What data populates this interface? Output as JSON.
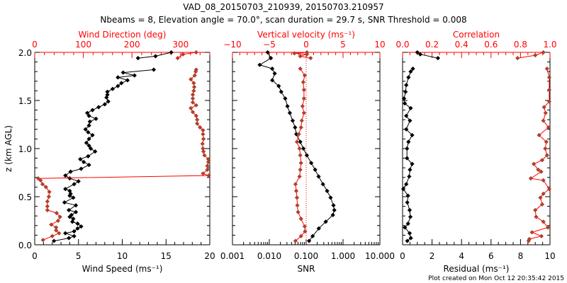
{
  "title": "VAD_08_20150703_210939, 20150703.210957",
  "subtitle": "Nbeams = 8, Elevation angle = 70.0°, scan duration = 29.7 s, SNR Threshold = 0.008",
  "footer": "Plot created on Mon Oct 12 20:35:42 2015",
  "colors": {
    "primary": "#000000",
    "secondary_marker": "#b0402c",
    "secondary_line": "#ff0000",
    "axis_top": "#ff0000"
  },
  "chart_data": [
    {
      "type": "line",
      "ylabel": "z (km AGL)",
      "ylim": [
        0,
        2
      ],
      "yticks": [
        "0.0",
        "0.5",
        "1.0",
        "1.5",
        "2.0"
      ],
      "xlabel": "Wind Speed (ms⁻¹)",
      "xlim": [
        0,
        20
      ],
      "xticks": [
        "0",
        "5",
        "10",
        "15",
        "20"
      ],
      "top_xlabel": "Wind Direction (deg)",
      "top_xlim": [
        0,
        360
      ],
      "top_xticks": [
        "0",
        "100",
        "200",
        "300"
      ],
      "series": [
        {
          "name": "Wind Speed",
          "axis": "bottom",
          "points": [
            [
              0.04,
              2.2
            ],
            [
              0.07,
              3.9
            ],
            [
              0.09,
              4.5
            ],
            [
              0.12,
              3.5
            ],
            [
              0.14,
              4.5
            ],
            [
              0.17,
              4.9
            ],
            [
              0.19,
              5.3
            ],
            [
              0.22,
              4.9
            ],
            [
              0.24,
              4.3
            ],
            [
              0.27,
              4.4
            ],
            [
              0.29,
              4.0
            ],
            [
              0.31,
              4.2
            ],
            [
              0.34,
              4.7
            ],
            [
              0.36,
              3.9
            ],
            [
              0.41,
              4.7
            ],
            [
              0.44,
              3.4
            ],
            [
              0.49,
              4.4
            ],
            [
              0.51,
              4.0
            ],
            [
              0.53,
              4.1
            ],
            [
              0.56,
              4.0
            ],
            [
              0.58,
              3.5
            ],
            [
              0.63,
              4.5
            ],
            [
              0.66,
              5.0
            ],
            [
              0.69,
              4.0
            ],
            [
              0.72,
              3.5
            ],
            [
              0.76,
              4.1
            ],
            [
              0.79,
              5.3
            ],
            [
              0.83,
              6.2
            ],
            [
              0.86,
              5.6
            ],
            [
              0.89,
              5.2
            ],
            [
              0.92,
              6.1
            ],
            [
              0.97,
              6.9
            ],
            [
              1.0,
              6.4
            ],
            [
              1.03,
              6.2
            ],
            [
              1.06,
              5.9
            ],
            [
              1.1,
              6.2
            ],
            [
              1.14,
              6.6
            ],
            [
              1.17,
              6.1
            ],
            [
              1.2,
              5.8
            ],
            [
              1.24,
              6.2
            ],
            [
              1.28,
              6.3
            ],
            [
              1.31,
              7.0
            ],
            [
              1.34,
              6.2
            ],
            [
              1.37,
              6.0
            ],
            [
              1.4,
              6.6
            ],
            [
              1.43,
              7.3
            ],
            [
              1.46,
              8.0
            ],
            [
              1.49,
              8.4
            ],
            [
              1.53,
              8.2
            ],
            [
              1.56,
              8.3
            ],
            [
              1.59,
              8.3
            ],
            [
              1.62,
              8.9
            ],
            [
              1.65,
              9.5
            ],
            [
              1.68,
              9.9
            ],
            [
              1.71,
              10.6
            ],
            [
              1.74,
              9.5
            ],
            [
              1.76,
              11.4
            ],
            [
              1.79,
              10.1
            ],
            [
              1.82,
              13.6
            ],
            null,
            [
              1.94,
              11.8
            ],
            [
              1.96,
              13.8
            ],
            [
              2.0,
              15.6
            ]
          ]
        },
        {
          "name": "Wind Direction",
          "axis": "top",
          "points": [
            [
              0.05,
              17
            ],
            [
              0.09,
              36
            ],
            [
              0.12,
              50
            ],
            [
              0.15,
              44
            ],
            [
              0.18,
              44
            ],
            [
              0.21,
              34
            ],
            [
              0.25,
              48
            ],
            [
              0.29,
              52
            ],
            [
              0.33,
              45
            ],
            [
              0.36,
              26
            ],
            [
              0.4,
              26
            ],
            [
              0.45,
              26
            ],
            [
              0.5,
              29
            ],
            [
              0.55,
              30
            ],
            [
              0.6,
              23
            ],
            [
              0.63,
              16
            ],
            [
              0.67,
              12
            ],
            [
              0.69,
              7
            ],
            [
              0.72,
              358
            ],
            [
              0.74,
              346
            ],
            [
              0.78,
              355
            ],
            [
              0.82,
              355
            ],
            [
              0.86,
              357
            ],
            [
              0.89,
              357
            ],
            [
              0.93,
              349
            ],
            [
              0.97,
              347
            ],
            [
              1.0,
              346
            ],
            [
              1.05,
              345
            ],
            [
              1.1,
              347
            ],
            [
              1.15,
              346
            ],
            [
              1.19,
              346
            ],
            [
              1.22,
              340
            ],
            [
              1.26,
              334
            ],
            [
              1.3,
              334
            ],
            [
              1.34,
              332
            ],
            [
              1.38,
              325
            ],
            [
              1.42,
              321
            ],
            [
              1.45,
              332
            ],
            [
              1.48,
              325
            ],
            [
              1.52,
              325
            ],
            [
              1.56,
              325
            ],
            [
              1.6,
              327
            ],
            [
              1.64,
              328
            ],
            [
              1.68,
              327
            ],
            [
              1.72,
              321
            ],
            [
              1.76,
              329
            ],
            [
              1.8,
              331
            ],
            [
              1.82,
              332
            ],
            null,
            [
              1.94,
              294
            ],
            [
              1.98,
              305
            ],
            [
              2.0,
              332
            ]
          ]
        }
      ]
    },
    {
      "type": "line",
      "ylim": [
        0,
        2
      ],
      "xlabel": "SNR",
      "xscale": "log",
      "xlim": [
        0.001,
        10
      ],
      "xticks": [
        "0.001",
        "0.010",
        "0.100",
        "1.000",
        "10.000"
      ],
      "top_xlabel": "Vertical velocity (ms⁻¹)",
      "top_xlim": [
        -10,
        10
      ],
      "top_xticks": [
        "−10",
        "−5",
        "0",
        "5",
        "10"
      ],
      "series": [
        {
          "name": "SNR",
          "axis": "bottom",
          "points": [
            [
              2.0,
              0.009
            ],
            [
              1.94,
              0.011
            ],
            [
              1.87,
              0.0055
            ],
            [
              1.83,
              0.012
            ],
            [
              1.78,
              0.014
            ],
            [
              1.71,
              0.012
            ],
            [
              1.65,
              0.018
            ],
            [
              1.59,
              0.021
            ],
            [
              1.52,
              0.027
            ],
            [
              1.44,
              0.031
            ],
            [
              1.37,
              0.036
            ],
            [
              1.29,
              0.043
            ],
            [
              1.22,
              0.05
            ],
            [
              1.15,
              0.054
            ],
            [
              1.07,
              0.069
            ],
            [
              1.0,
              0.084
            ],
            [
              0.93,
              0.104
            ],
            [
              0.85,
              0.137
            ],
            [
              0.78,
              0.175
            ],
            [
              0.71,
              0.217
            ],
            [
              0.63,
              0.285
            ],
            [
              0.56,
              0.37
            ],
            [
              0.49,
              0.46
            ],
            [
              0.41,
              0.55
            ],
            [
              0.36,
              0.58
            ],
            [
              0.31,
              0.53
            ],
            [
              0.24,
              0.34
            ],
            [
              0.17,
              0.22
            ],
            [
              0.09,
              0.15
            ],
            [
              0.04,
              0.12
            ]
          ]
        },
        {
          "name": "Vertical velocity",
          "axis": "top",
          "points": [
            [
              2.0,
              0.1
            ],
            [
              1.99,
              -1.6
            ],
            [
              1.98,
              0.1
            ],
            [
              1.96,
              -0.8
            ],
            [
              1.94,
              0.6
            ],
            null,
            [
              1.83,
              -0.8
            ],
            [
              1.76,
              -0.2
            ],
            [
              1.69,
              -0.4
            ],
            [
              1.61,
              -0.3
            ],
            [
              1.52,
              -0.3
            ],
            [
              1.44,
              -0.5
            ],
            [
              1.37,
              -0.3
            ],
            [
              1.29,
              -0.6
            ],
            [
              1.22,
              -0.7
            ],
            [
              1.15,
              -1.0
            ],
            [
              1.07,
              -1.25
            ],
            [
              1.0,
              -0.9
            ],
            [
              0.93,
              -0.8
            ],
            [
              0.85,
              -0.7
            ],
            [
              0.78,
              -0.8
            ],
            [
              0.71,
              -0.9
            ],
            [
              0.63,
              -1.45
            ],
            [
              0.56,
              -1.35
            ],
            [
              0.49,
              -1.25
            ],
            [
              0.41,
              -1.2
            ],
            [
              0.34,
              -1.1
            ],
            [
              0.27,
              -0.7
            ],
            [
              0.19,
              -0.2
            ],
            [
              0.14,
              -0.15
            ],
            [
              0.09,
              -0.7
            ],
            [
              0.04,
              -1.45
            ]
          ]
        }
      ]
    },
    {
      "type": "line",
      "ylim": [
        0,
        2
      ],
      "xlabel": "Residual (ms⁻¹)",
      "xlim": [
        0,
        10
      ],
      "xticks": [
        "0",
        "2",
        "4",
        "6",
        "8",
        "10"
      ],
      "top_xlabel": "Correlation",
      "top_xlim": [
        0,
        1
      ],
      "top_xticks": [
        "0.0",
        "0.2",
        "0.4",
        "0.6",
        "0.8",
        "1.0"
      ],
      "series": [
        {
          "name": "Residual",
          "axis": "bottom",
          "points": [
            [
              2.0,
              1.0
            ],
            [
              1.98,
              1.2
            ],
            [
              1.94,
              2.4
            ],
            null,
            [
              1.83,
              0.7
            ],
            [
              1.8,
              0.55
            ],
            [
              1.74,
              0.4
            ],
            [
              1.66,
              0.25
            ],
            [
              1.59,
              0.2
            ],
            [
              1.52,
              0.1
            ],
            [
              1.47,
              0.15
            ],
            [
              1.42,
              0.55
            ],
            [
              1.34,
              0.25
            ],
            [
              1.29,
              0.5
            ],
            [
              1.2,
              0.25
            ],
            [
              1.14,
              0.65
            ],
            [
              1.07,
              0.4
            ],
            [
              1.0,
              0.3
            ],
            [
              0.9,
              0.3
            ],
            [
              0.84,
              0.65
            ],
            [
              0.78,
              0.5
            ],
            [
              0.71,
              0.45
            ],
            [
              0.63,
              0.25
            ],
            [
              0.58,
              0.05
            ],
            [
              0.51,
              0.37
            ],
            [
              0.44,
              0.32
            ],
            [
              0.36,
              0.48
            ],
            [
              0.29,
              0.53
            ],
            [
              0.22,
              0.37
            ],
            [
              0.18,
              0.16
            ],
            [
              0.12,
              0.48
            ],
            [
              0.07,
              0.56
            ],
            [
              0.04,
              0.32
            ]
          ]
        },
        {
          "name": "Correlation",
          "axis": "top",
          "points": [
            [
              2.0,
              0.955
            ],
            [
              1.97,
              0.9
            ],
            [
              1.94,
              0.78
            ],
            null,
            [
              1.83,
              0.98
            ],
            [
              1.74,
              0.995
            ],
            [
              1.61,
              0.995
            ],
            [
              1.49,
              0.995
            ],
            [
              1.43,
              0.96
            ],
            [
              1.37,
              0.97
            ],
            [
              1.29,
              0.955
            ],
            [
              1.22,
              0.99
            ],
            [
              1.14,
              0.926
            ],
            [
              1.07,
              0.975
            ],
            [
              1.0,
              0.968
            ],
            [
              0.93,
              0.98
            ],
            [
              0.88,
              0.947
            ],
            [
              0.84,
              0.89
            ],
            [
              0.78,
              0.92
            ],
            [
              0.76,
              0.94
            ],
            [
              0.69,
              0.87
            ],
            [
              0.67,
              0.955
            ],
            [
              0.58,
              0.995
            ],
            [
              0.53,
              0.955
            ],
            [
              0.49,
              0.935
            ],
            [
              0.42,
              0.947
            ],
            [
              0.36,
              0.9
            ],
            [
              0.29,
              0.906
            ],
            [
              0.24,
              0.955
            ],
            [
              0.18,
              0.986
            ],
            [
              0.13,
              0.878
            ],
            [
              0.09,
              0.942
            ],
            [
              0.06,
              0.86
            ],
            [
              0.04,
              0.855
            ]
          ]
        }
      ]
    }
  ]
}
